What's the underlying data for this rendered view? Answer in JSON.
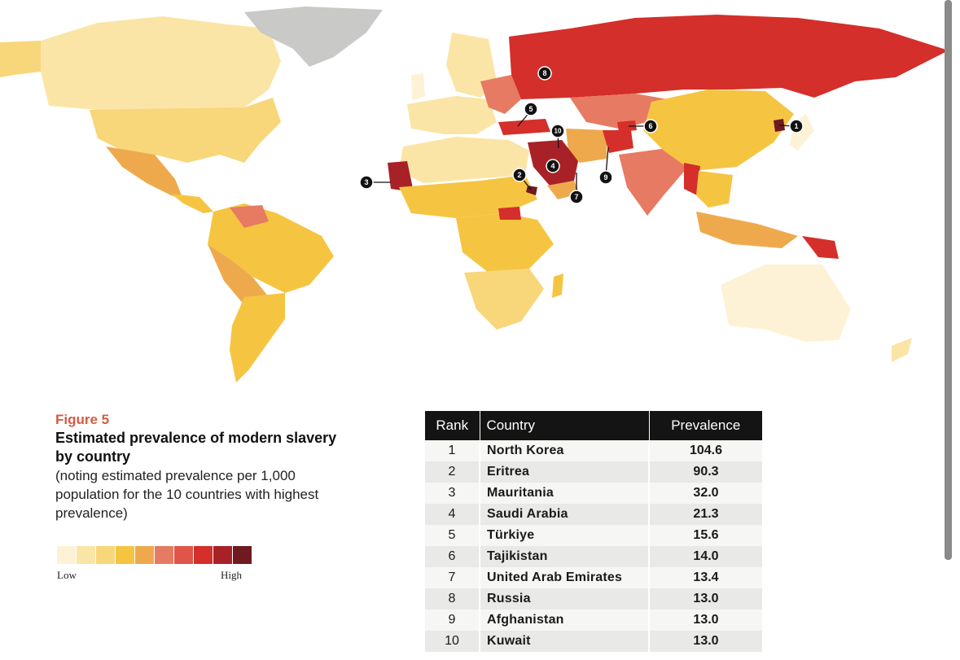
{
  "figure": {
    "label": "Figure 5",
    "title": "Estimated prevalence of modern slavery by country",
    "subtitle": "(noting estimated prevalence per 1,000 population for the 10 countries with highest prevalence)"
  },
  "legend": {
    "low_label": "Low",
    "high_label": "High",
    "colors": [
      "#fdf2d6",
      "#fbe5a6",
      "#f8d67a",
      "#f5c542",
      "#efa94d",
      "#e77a62",
      "#e0544a",
      "#d42f2a",
      "#a82127",
      "#6e1a1e"
    ]
  },
  "table": {
    "headers": {
      "rank": "Rank",
      "country": "Country",
      "prevalence": "Prevalence"
    },
    "rows": [
      {
        "rank": "1",
        "country": "North Korea",
        "prevalence": "104.6"
      },
      {
        "rank": "2",
        "country": "Eritrea",
        "prevalence": "90.3"
      },
      {
        "rank": "3",
        "country": "Mauritania",
        "prevalence": "32.0"
      },
      {
        "rank": "4",
        "country": "Saudi Arabia",
        "prevalence": "21.3"
      },
      {
        "rank": "5",
        "country": "Türkiye",
        "prevalence": "15.6"
      },
      {
        "rank": "6",
        "country": "Tajikistan",
        "prevalence": "14.0"
      },
      {
        "rank": "7",
        "country": "United Arab Emirates",
        "prevalence": "13.4"
      },
      {
        "rank": "8",
        "country": "Russia",
        "prevalence": "13.0"
      },
      {
        "rank": "9",
        "country": "Afghanistan",
        "prevalence": "13.0"
      },
      {
        "rank": "10",
        "country": "Kuwait",
        "prevalence": "13.0"
      }
    ]
  },
  "map_markers": [
    "1",
    "2",
    "3",
    "4",
    "5",
    "6",
    "7",
    "8",
    "9",
    "10"
  ]
}
